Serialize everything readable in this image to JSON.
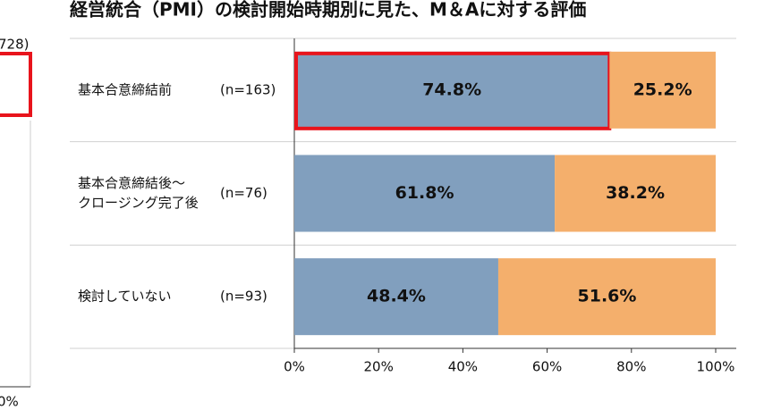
{
  "chart_data": {
    "type": "stacked-barh",
    "title": "経営統合（PMI）の検討開始時期別に見た、M＆Aに対する評価",
    "categories": [
      [
        "基本合意締結前"
      ],
      [
        "基本合意締結後～",
        "クロージング完了後"
      ],
      [
        "検討していない"
      ]
    ],
    "sample_sizes": [
      "(n=163)",
      "(n=76)",
      "(n=93)"
    ],
    "series": [
      {
        "color": "#819fbe",
        "values": [
          74.8,
          61.8,
          48.4
        ],
        "value_labels": [
          "74.8%",
          "61.8%",
          "48.4%"
        ]
      },
      {
        "color": "#f4af6c",
        "values": [
          25.2,
          38.2,
          51.6
        ],
        "value_labels": [
          "25.2%",
          "38.2%",
          "51.6%"
        ]
      }
    ],
    "xlim": [
      0,
      100
    ],
    "xticks": [
      {
        "value": 0,
        "label": "0%"
      },
      {
        "value": 20,
        "label": "20%"
      },
      {
        "value": 40,
        "label": "40%"
      },
      {
        "value": 60,
        "label": "60%"
      },
      {
        "value": 80,
        "label": "80%"
      },
      {
        "value": 100,
        "label": "100%"
      }
    ],
    "highlight": {
      "series": 0,
      "index": 0,
      "color": "#e8141c"
    },
    "cropped_neighbor_texts": [
      "728)",
      "0%"
    ]
  }
}
